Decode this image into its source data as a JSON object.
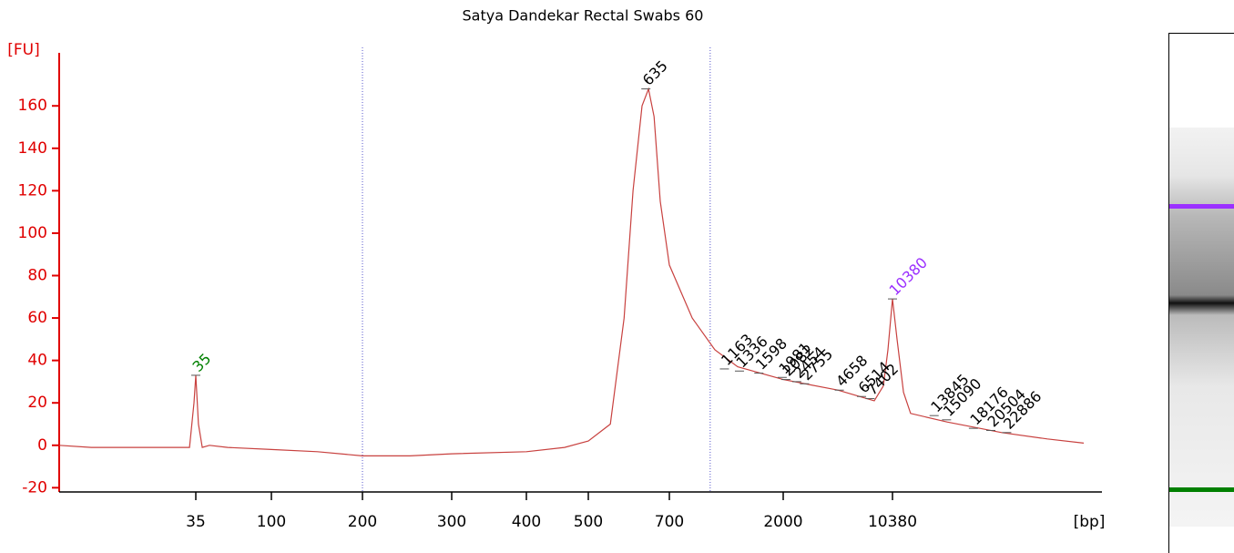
{
  "chart_data": {
    "type": "line",
    "title": "Satya Dandekar Rectal Swabs 60",
    "y_label": "[FU]",
    "x_label": "[bp]",
    "color": "#c8413f",
    "xlim": [
      5,
      39000
    ],
    "xticks": [
      35,
      100,
      200,
      300,
      400,
      500,
      700,
      2000,
      10380
    ],
    "ylim": [
      -22,
      185
    ],
    "yticks": [
      -20,
      0,
      20,
      40,
      60,
      80,
      100,
      120,
      140,
      160
    ],
    "x": [
      5,
      7.9,
      15,
      28.8,
      32,
      34.1,
      35,
      36.3,
      38.3,
      42.3,
      54.5,
      100,
      142,
      200,
      248,
      300,
      400,
      459,
      500,
      548,
      580,
      602,
      625,
      642,
      657,
      674,
      700,
      864,
      1065,
      1314,
      2000,
      4557,
      7887,
      9050,
      9690,
      10380,
      10710,
      11200,
      11770,
      15140,
      22100,
      30300,
      39000
    ],
    "values": [
      0,
      -1,
      -1,
      -1,
      -1,
      20,
      33,
      10,
      -1,
      0,
      -1,
      -2,
      -3,
      -5,
      -5,
      -4,
      -3,
      -1,
      2,
      10,
      60,
      120,
      160,
      168,
      155,
      115,
      85,
      60,
      45,
      37,
      31,
      26,
      21,
      28,
      45,
      69,
      50,
      25,
      15,
      11,
      6,
      3,
      1
    ],
    "region_lines": [
      200,
      1020
    ],
    "peaks": [
      {
        "size": 35,
        "height": 33,
        "color": "#008000"
      },
      {
        "size": 635,
        "height": 168,
        "color": "#000000"
      },
      {
        "size": 1163,
        "height": 36,
        "color": "#000000"
      },
      {
        "size": 1336,
        "height": 35,
        "color": "#000000"
      },
      {
        "size": 1598,
        "height": 34,
        "color": "#000000"
      },
      {
        "size": 1981,
        "height": 32,
        "color": "#000000"
      },
      {
        "size": 2082,
        "height": 31,
        "color": "#000000"
      },
      {
        "size": 2454,
        "height": 30,
        "color": "#000000"
      },
      {
        "size": 2755,
        "height": 29,
        "color": "#000000"
      },
      {
        "size": 4658,
        "height": 26,
        "color": "#000000"
      },
      {
        "size": 6514,
        "height": 23,
        "color": "#000000"
      },
      {
        "size": 7402,
        "height": 22,
        "color": "#000000"
      },
      {
        "size": 10380,
        "height": 69,
        "color": "#9b30ff"
      },
      {
        "size": 13845,
        "height": 14,
        "color": "#000000"
      },
      {
        "size": 15090,
        "height": 12,
        "color": "#000000"
      },
      {
        "size": 18176,
        "height": 8,
        "color": "#000000"
      },
      {
        "size": 20504,
        "height": 7,
        "color": "#000000"
      },
      {
        "size": 22886,
        "height": 6,
        "color": "#000000"
      }
    ]
  }
}
